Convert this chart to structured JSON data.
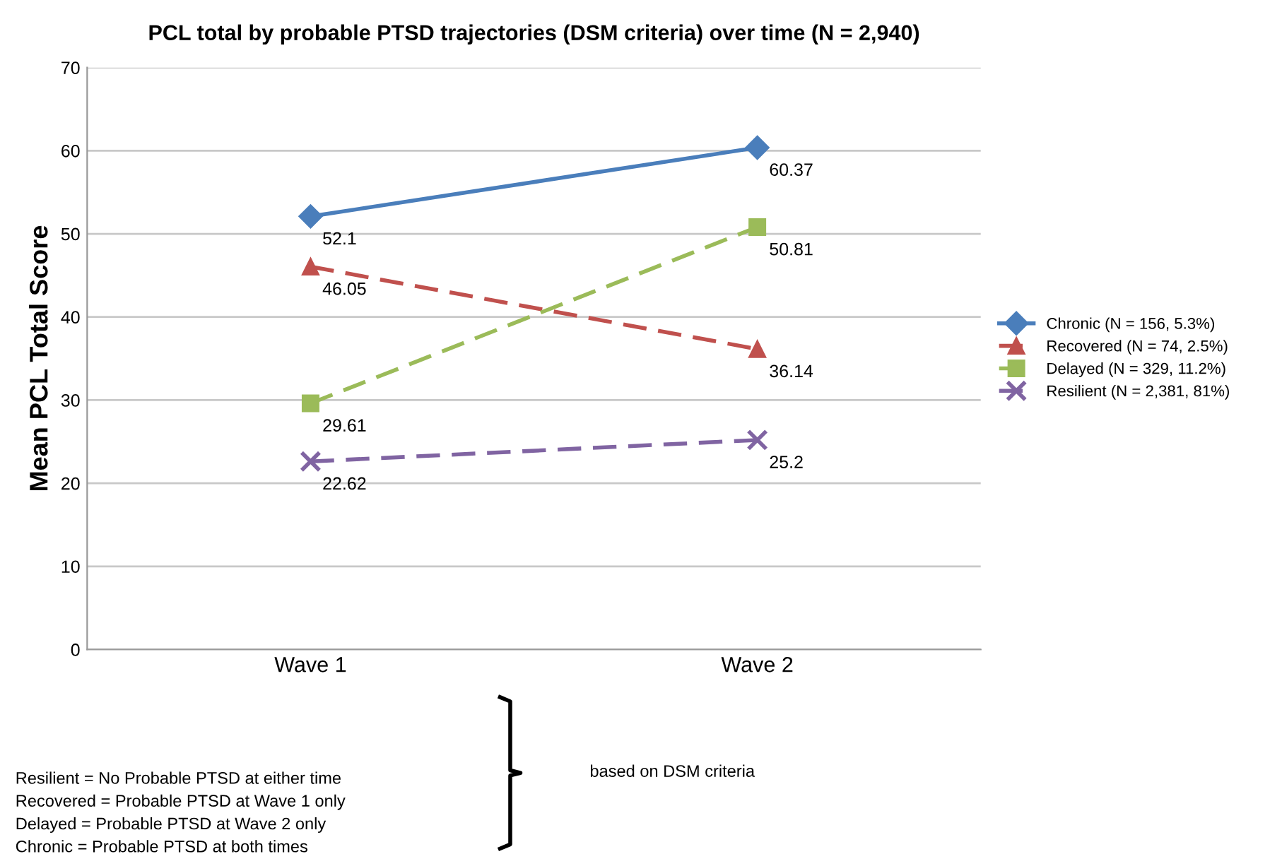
{
  "chart_data": {
    "type": "line",
    "title": "PCL total by probable PTSD trajectories (DSM criteria) over time (N = 2,940)",
    "ylabel": "Mean PCL Total Score",
    "categories": [
      "Wave 1",
      "Wave 2"
    ],
    "series": [
      {
        "name": "Chronic (N = 156, 5.3%)",
        "color": "#4a7ebb",
        "values": [
          52.1,
          60.37
        ],
        "marker": "diamond",
        "line_style": "solid"
      },
      {
        "name": "Recovered (N = 74, 2.5%)",
        "color": "#c0504d",
        "values": [
          46.05,
          36.14
        ],
        "marker": "triangle",
        "line_style": "dashed"
      },
      {
        "name": "Delayed (N = 329, 11.2%)",
        "color": "#9bbb59",
        "values": [
          29.61,
          50.81
        ],
        "marker": "square",
        "line_style": "dashed"
      },
      {
        "name": "Resilient (N = 2,381, 81%)",
        "color": "#8064a2",
        "values": [
          22.62,
          25.2
        ],
        "marker": "cross",
        "line_style": "dashed"
      }
    ],
    "ylim": [
      0,
      70
    ],
    "yticks": [
      0,
      10,
      20,
      30,
      40,
      50,
      60,
      70
    ],
    "grid": "y",
    "legend": "right",
    "data_labels": true,
    "annotations": [
      "Resilient = No Probable PTSD at either time\nRecovered = Probable PTSD at Wave 1 only\nDelayed = Probable PTSD at Wave 2 only\nChronic = Probable PTSD at both times",
      "based on DSM criteria"
    ]
  }
}
